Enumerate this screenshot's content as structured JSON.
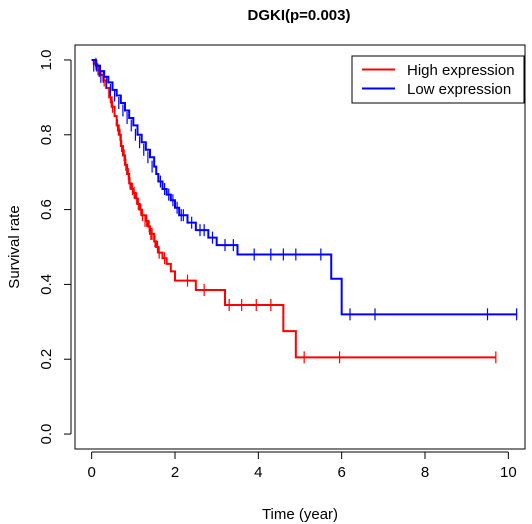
{
  "chart_data": {
    "type": "line",
    "title": "DGKI(p=0.003)",
    "xlabel": "Time (year)",
    "ylabel": "Survival rate",
    "xlim": [
      -0.4,
      10.4
    ],
    "ylim": [
      -0.04,
      1.04
    ],
    "xticks": [
      0,
      2,
      4,
      6,
      8,
      10
    ],
    "yticks": [
      0.0,
      0.2,
      0.4,
      0.6,
      0.8,
      1.0
    ],
    "xtick_labels": [
      "0",
      "2",
      "4",
      "6",
      "8",
      "10"
    ],
    "ytick_labels": [
      "0.0",
      "0.2",
      "0.4",
      "0.6",
      "0.8",
      "1.0"
    ],
    "legend_position": "top-right",
    "series": [
      {
        "name": "High expression",
        "color": "#ff0000",
        "step_x": [
          0.0,
          0.05,
          0.12,
          0.2,
          0.28,
          0.35,
          0.42,
          0.48,
          0.55,
          0.6,
          0.65,
          0.7,
          0.75,
          0.8,
          0.85,
          0.9,
          0.95,
          1.0,
          1.05,
          1.1,
          1.15,
          1.2,
          1.3,
          1.35,
          1.4,
          1.5,
          1.55,
          1.6,
          1.7,
          1.8,
          1.9,
          2.0,
          2.1,
          2.5,
          3.2,
          4.6,
          4.9,
          9.7
        ],
        "step_y": [
          1.0,
          0.99,
          0.975,
          0.96,
          0.945,
          0.925,
          0.9,
          0.875,
          0.85,
          0.825,
          0.8,
          0.77,
          0.745,
          0.72,
          0.695,
          0.67,
          0.655,
          0.645,
          0.63,
          0.615,
          0.6,
          0.585,
          0.57,
          0.555,
          0.535,
          0.515,
          0.5,
          0.485,
          0.47,
          0.455,
          0.435,
          0.41,
          0.41,
          0.385,
          0.345,
          0.275,
          0.205,
          0.205
        ],
        "censor_x": [
          0.1,
          0.15,
          0.3,
          0.45,
          0.5,
          0.62,
          0.68,
          0.72,
          0.78,
          0.82,
          0.88,
          0.92,
          0.98,
          1.02,
          1.08,
          1.12,
          1.18,
          1.22,
          1.28,
          1.32,
          1.38,
          1.42,
          1.45,
          1.52,
          1.58,
          1.62,
          1.75,
          2.3,
          2.7,
          3.3,
          3.6,
          3.95,
          4.3,
          5.1,
          5.95,
          9.7
        ],
        "censor_y": [
          0.99,
          0.975,
          0.945,
          0.9,
          0.875,
          0.825,
          0.8,
          0.77,
          0.745,
          0.72,
          0.695,
          0.67,
          0.655,
          0.645,
          0.63,
          0.615,
          0.6,
          0.585,
          0.57,
          0.57,
          0.555,
          0.535,
          0.535,
          0.515,
          0.5,
          0.485,
          0.47,
          0.41,
          0.385,
          0.345,
          0.345,
          0.345,
          0.345,
          0.205,
          0.205,
          0.205
        ]
      },
      {
        "name": "Low expression",
        "color": "#0000ff",
        "step_x": [
          0.0,
          0.1,
          0.2,
          0.3,
          0.4,
          0.5,
          0.6,
          0.7,
          0.8,
          0.9,
          1.0,
          1.1,
          1.2,
          1.3,
          1.4,
          1.5,
          1.55,
          1.6,
          1.7,
          1.8,
          1.9,
          2.0,
          2.1,
          2.3,
          2.5,
          2.8,
          3.0,
          3.5,
          5.75,
          6.0,
          10.2
        ],
        "step_y": [
          1.0,
          0.985,
          0.97,
          0.955,
          0.94,
          0.92,
          0.905,
          0.885,
          0.865,
          0.845,
          0.825,
          0.8,
          0.78,
          0.76,
          0.74,
          0.715,
          0.695,
          0.675,
          0.655,
          0.64,
          0.625,
          0.605,
          0.585,
          0.565,
          0.545,
          0.525,
          0.505,
          0.48,
          0.415,
          0.32,
          0.32
        ],
        "censor_x": [
          0.05,
          0.12,
          0.18,
          0.22,
          0.28,
          0.35,
          0.45,
          0.55,
          0.65,
          0.75,
          0.85,
          0.95,
          1.05,
          1.15,
          1.25,
          1.35,
          1.45,
          1.65,
          1.75,
          1.85,
          1.95,
          2.05,
          2.15,
          2.2,
          2.4,
          2.6,
          2.7,
          2.9,
          3.2,
          3.4,
          3.9,
          4.3,
          4.6,
          4.9,
          5.5,
          6.2,
          6.8,
          9.5,
          10.2
        ],
        "censor_y": [
          0.985,
          0.985,
          0.97,
          0.955,
          0.955,
          0.94,
          0.92,
          0.905,
          0.885,
          0.865,
          0.845,
          0.825,
          0.8,
          0.78,
          0.76,
          0.74,
          0.715,
          0.675,
          0.655,
          0.64,
          0.625,
          0.605,
          0.585,
          0.585,
          0.565,
          0.545,
          0.545,
          0.525,
          0.505,
          0.505,
          0.48,
          0.48,
          0.48,
          0.48,
          0.48,
          0.32,
          0.32,
          0.32,
          0.32
        ]
      }
    ]
  }
}
